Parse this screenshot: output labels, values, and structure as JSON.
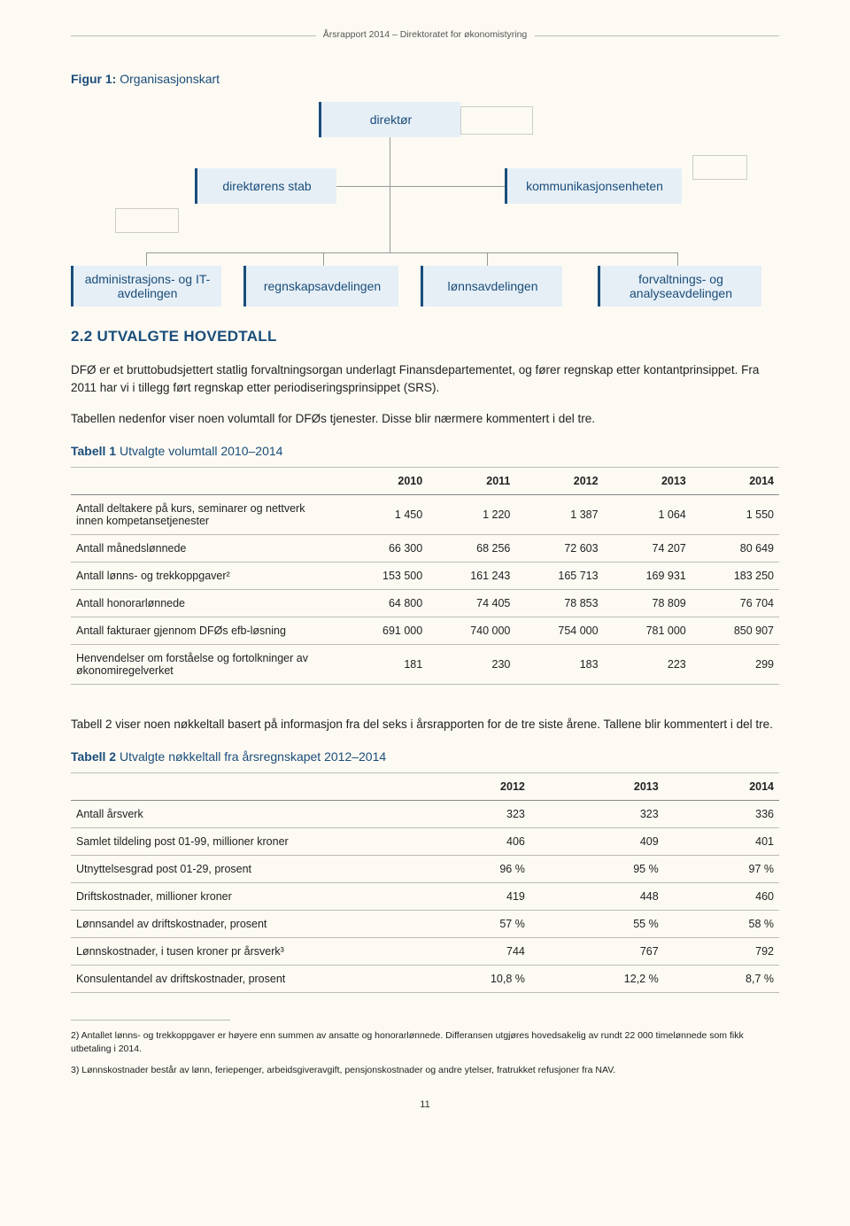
{
  "header": "Årsrapport 2014 – Direktoratet for økonomistyring",
  "figure1": {
    "label_bold": "Figur 1:",
    "label_rest": " Organisasjonskart"
  },
  "org": {
    "top": "direktør",
    "mid_left": "direktørens stab",
    "mid_right": "kommunikasjonsenheten",
    "bot1": "administrasjons- og IT-avdelingen",
    "bot2": "regnskapsavdelingen",
    "bot3": "lønnsavdelingen",
    "bot4": "forvaltnings- og analyseavdelingen",
    "box_bg": "#e6eff6",
    "box_border": "#1a4d7a",
    "text_color": "#1a4d7a"
  },
  "section_title": "2.2 UTVALGTE HOVEDTALL",
  "para1": "DFØ er et bruttobudsjettert statlig forvaltningsorgan underlagt Finansdepartementet, og fører regnskap etter kontantprinsippet. Fra 2011 har vi i tillegg ført regnskap etter periodiseringsprinsippet (SRS).",
  "para2": "Tabellen nedenfor viser noen volumtall for DFØs tjenester. Disse blir nærmere kommentert i del tre.",
  "table1": {
    "label_bold": "Tabell 1",
    "label_rest": " Utvalgte volumtall 2010–2014",
    "headers": [
      "",
      "2010",
      "2011",
      "2012",
      "2013",
      "2014"
    ],
    "rows": [
      [
        "Antall deltakere på kurs, seminarer og nettverk innen kompetansetjenester",
        "1 450",
        "1 220",
        "1 387",
        "1 064",
        "1 550"
      ],
      [
        "Antall månedslønnede",
        "66 300",
        "68 256",
        "72 603",
        "74 207",
        "80 649"
      ],
      [
        "Antall lønns- og trekkoppgaver²",
        "153 500",
        "161 243",
        "165 713",
        "169 931",
        "183 250"
      ],
      [
        "Antall honorarlønnede",
        "64 800",
        "74 405",
        "78 853",
        "78 809",
        "76 704"
      ],
      [
        "Antall fakturaer gjennom DFØs efb-løsning",
        "691 000",
        "740 000",
        "754 000",
        "781 000",
        "850 907"
      ],
      [
        "Henvendelser om forståelse og fortolkninger av økonomiregelverket",
        "181",
        "230",
        "183",
        "223",
        "299"
      ]
    ]
  },
  "para3": "Tabell 2 viser noen nøkkeltall basert på informasjon fra del seks i årsrapporten for de tre siste årene. Tallene blir kommentert i del tre.",
  "table2": {
    "label_bold": "Tabell 2",
    "label_rest": " Utvalgte nøkkeltall fra årsregnskapet 2012–2014",
    "headers": [
      "",
      "2012",
      "2013",
      "2014"
    ],
    "rows": [
      [
        "Antall årsverk",
        "323",
        "323",
        "336"
      ],
      [
        "Samlet tildeling post 01-99, millioner kroner",
        "406",
        "409",
        "401"
      ],
      [
        "Utnyttelsesgrad post 01-29, prosent",
        "96 %",
        "95 %",
        "97 %"
      ],
      [
        "Driftskostnader, millioner kroner",
        "419",
        "448",
        "460"
      ],
      [
        "Lønnsandel av driftskostnader, prosent",
        "57 %",
        "55 %",
        "58 %"
      ],
      [
        "Lønnskostnader, i tusen kroner pr årsverk³",
        "744",
        "767",
        "792"
      ],
      [
        "Konsulentandel av driftskostnader, prosent",
        "10,8 %",
        "12,2 %",
        "8,7 %"
      ]
    ]
  },
  "footnote2": "2) Antallet lønns- og trekkoppgaver er høyere enn summen av ansatte og honorarlønnede. Differansen utgjøres hovedsakelig av rundt 22 000 timelønnede som fikk utbetaling i 2014.",
  "footnote3": "3) Lønnskostnader består av lønn, feriepenger, arbeidsgiveravgift, pensjonskostnader og andre ytelser, fratrukket refusjoner fra NAV.",
  "page_number": "11"
}
